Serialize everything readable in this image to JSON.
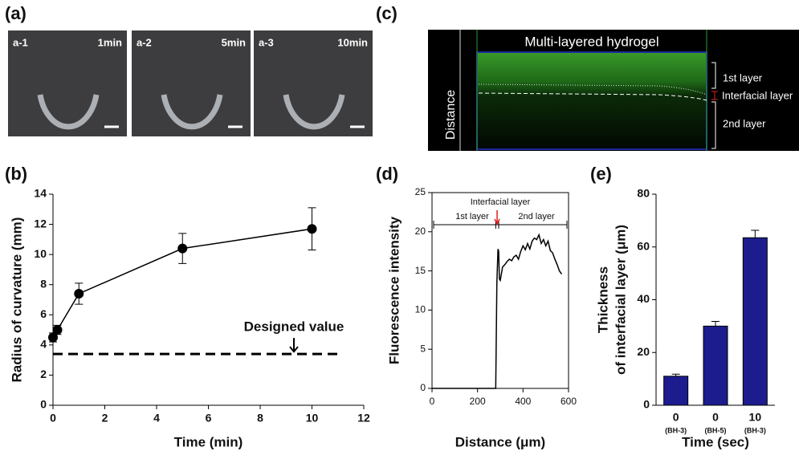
{
  "panel_labels": [
    "(a)",
    "(b)",
    "(c)",
    "(d)",
    "(e)"
  ],
  "photos": [
    {
      "label": "a-1",
      "time": "1min"
    },
    {
      "label": "a-2",
      "time": "5min"
    },
    {
      "label": "a-3",
      "time": "10min"
    }
  ],
  "image_c": {
    "title": "Multi-layered hydrogel",
    "axis_label": "Distance",
    "layers": [
      "1st layer",
      "Interfacial layer",
      "2nd layer"
    ]
  },
  "chart_data": [
    {
      "type": "line",
      "x_label": "Time (min)",
      "y_label": "Radius of curvature (mm)",
      "x": [
        0,
        0.17,
        1,
        5,
        10
      ],
      "series": [
        {
          "color": "#000000",
          "values": [
            4.5,
            5.0,
            7.4,
            10.4,
            11.7
          ],
          "errors": [
            0.3,
            0.3,
            0.7,
            1.0,
            1.4
          ]
        }
      ],
      "reference_line": {
        "value": 3.4,
        "label": "Designed value"
      },
      "xlim": [
        0,
        12
      ],
      "xticks": [
        0,
        2,
        4,
        6,
        8,
        10,
        12
      ],
      "ylim": [
        0,
        14
      ],
      "yticks": [
        0,
        2,
        4,
        6,
        8,
        10,
        12,
        14
      ],
      "grid": false
    },
    {
      "type": "line",
      "x_label": "Distance (μm)",
      "y_label": "Fluorescence intensity",
      "annotations": {
        "interfacial": "Interfacial layer",
        "first": "1st layer",
        "second": "2nd layer"
      },
      "x": [
        0,
        280,
        285,
        290,
        293,
        296,
        300,
        310,
        320,
        330,
        340,
        350,
        360,
        370,
        380,
        390,
        400,
        410,
        420,
        430,
        440,
        450,
        460,
        470,
        480,
        490,
        500,
        510,
        520,
        530,
        540,
        550,
        560,
        570
      ],
      "series": [
        {
          "color": "#000000",
          "values": [
            0,
            0,
            13.5,
            17.8,
            17.5,
            14,
            13.8,
            15.5,
            15.8,
            16.2,
            16.5,
            16.3,
            16.8,
            17,
            16.5,
            17.5,
            18.2,
            17.7,
            18.5,
            17.8,
            18.8,
            19.2,
            19,
            19.6,
            18.5,
            19,
            18.2,
            18.8,
            17.6,
            17.3,
            16.5,
            15.8,
            15,
            14.6
          ]
        }
      ],
      "xlim": [
        0,
        600
      ],
      "xticks": [
        0,
        200,
        400,
        600
      ],
      "ylim": [
        0,
        25
      ],
      "yticks": [
        0,
        5,
        10,
        15,
        20,
        25
      ],
      "grid": false
    },
    {
      "type": "bar",
      "x_label": "Time (sec)",
      "y_label": [
        "Thickness",
        "of interfacial layer (μm)"
      ],
      "categories": [
        "0",
        "0",
        "10"
      ],
      "category_notes": [
        "(BH-3)",
        "(BH-5)",
        "(BH-3)"
      ],
      "values": [
        11,
        30,
        63.5
      ],
      "errors": [
        0.8,
        1.8,
        2.8
      ],
      "color": "#1c1c8f",
      "ylim": [
        0,
        80
      ],
      "yticks": [
        0,
        20,
        40,
        60,
        80
      ],
      "grid": false
    }
  ]
}
